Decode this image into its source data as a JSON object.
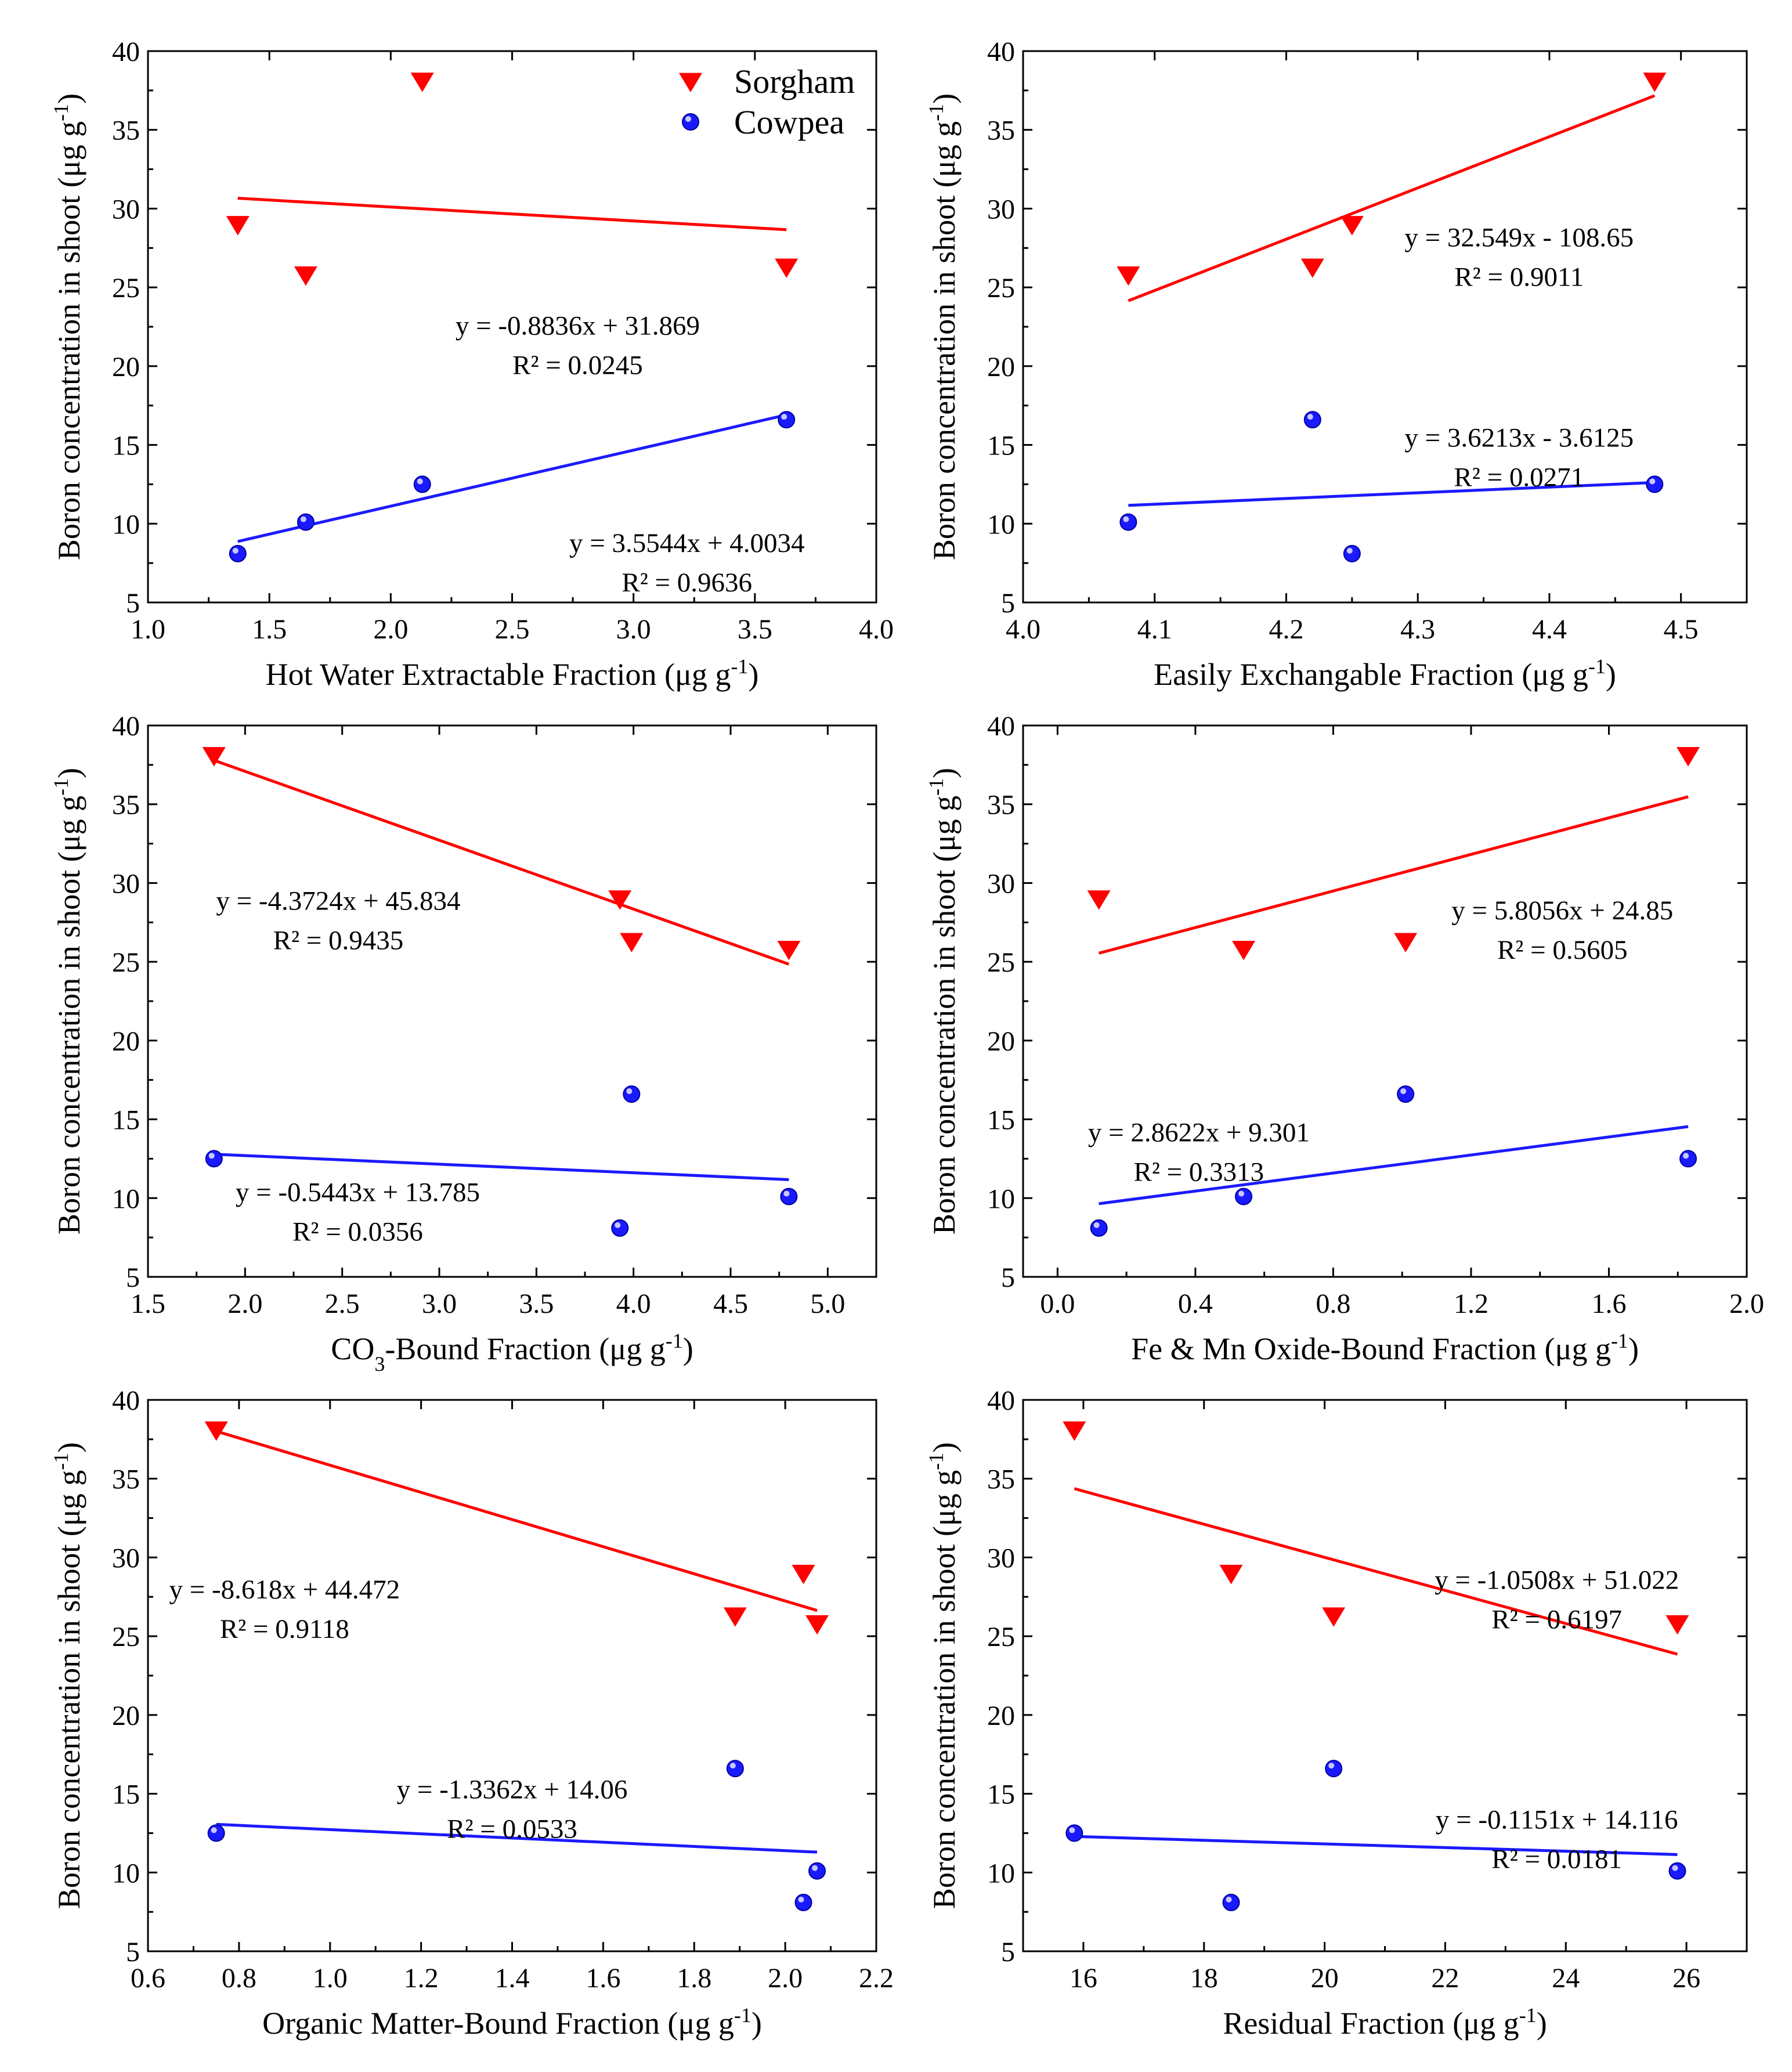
{
  "legend": {
    "sorghum_label": "Sorgham",
    "cowpea_label": "Cowpea"
  },
  "colors": {
    "sorghum": "#ff0000",
    "cowpea": "#1a1aff",
    "cowpea_dark": "#0000a0",
    "axes": "#000000"
  },
  "chart_data": [
    {
      "type": "scatter",
      "panel": "hot-water",
      "xlabel": "Hot Water Extractable Fraction (μg g-1)",
      "xlabel_main": "Hot Water Extractable Fraction (μg g",
      "xlabel_sup": "-1",
      "xlabel_tail": ")",
      "ylabel_main": "Boron concentration in shoot (μg g",
      "ylabel_sup": "-1",
      "ylabel_tail": ")",
      "xlim": [
        1.0,
        4.0
      ],
      "ylim": [
        5,
        40
      ],
      "xticks": [
        1.0,
        1.5,
        2.0,
        2.5,
        3.0,
        3.5,
        4.0
      ],
      "yticks": [
        5,
        10,
        15,
        20,
        25,
        30,
        35,
        40
      ],
      "xdecimals": 1,
      "show_legend": true,
      "series": [
        {
          "name": "Sorgham",
          "x": [
            1.37,
            1.65,
            2.13,
            3.63
          ],
          "y": [
            29.0,
            25.8,
            38.1,
            26.3
          ],
          "fit": {
            "slope": -0.8836,
            "intercept": 31.869,
            "xrange": [
              1.37,
              3.63
            ]
          },
          "equation": "y = -0.8836x + 31.869",
          "r2": "R² = 0.0245",
          "label_anchor": [
            2.77,
            22.0
          ]
        },
        {
          "name": "Cowpea",
          "x": [
            1.37,
            1.65,
            2.13,
            3.63
          ],
          "y": [
            8.1,
            10.1,
            12.5,
            16.6
          ],
          "fit": {
            "slope": 3.5544,
            "intercept": 4.0034,
            "xrange": [
              1.37,
              3.63
            ]
          },
          "equation": "y = 3.5544x + 4.0034",
          "r2": "R² = 0.9636",
          "label_anchor": [
            3.22,
            8.2
          ]
        }
      ]
    },
    {
      "type": "scatter",
      "panel": "easily-exchangeable",
      "xlabel": "Easily Exchangable Fraction (μg g-1)",
      "xlabel_main": "Easily Exchangable Fraction (μg g",
      "xlabel_sup": "-1",
      "xlabel_tail": ")",
      "ylabel_main": "Boron concentration in shoot (μg g",
      "ylabel_sup": "-1",
      "ylabel_tail": ")",
      "xlim": [
        4.0,
        4.55
      ],
      "ylim": [
        5,
        40
      ],
      "xticks": [
        4.0,
        4.1,
        4.2,
        4.3,
        4.4,
        4.5
      ],
      "yticks": [
        5,
        10,
        15,
        20,
        25,
        30,
        35,
        40
      ],
      "xdecimals": 1,
      "show_legend": false,
      "series": [
        {
          "name": "Sorgham",
          "x": [
            4.08,
            4.22,
            4.25,
            4.48
          ],
          "y": [
            25.8,
            26.3,
            29.0,
            38.1
          ],
          "fit": {
            "slope": 32.549,
            "intercept": -108.65,
            "xrange": [
              4.08,
              4.48
            ]
          },
          "equation": "y = 32.549x - 108.65",
          "r2": "R² = 0.9011",
          "label_anchor": [
            4.377,
            27.6
          ]
        },
        {
          "name": "Cowpea",
          "x": [
            4.08,
            4.22,
            4.25,
            4.48
          ],
          "y": [
            10.1,
            16.6,
            8.1,
            12.5
          ],
          "fit": {
            "slope": 3.6213,
            "intercept": -3.6125,
            "xrange": [
              4.08,
              4.48
            ]
          },
          "equation": "y = 3.6213x - 3.6125",
          "r2": "R² = 0.0271",
          "label_anchor": [
            4.377,
            14.9
          ]
        }
      ]
    },
    {
      "type": "scatter",
      "panel": "co3-bound",
      "xlabel": "CO3-Bound Fraction (μg g-1)",
      "xlabel_main": "CO",
      "xlabel_sub": "3",
      "xlabel_rest": "-Bound Fraction (μg g",
      "xlabel_sup": "-1",
      "xlabel_tail": ")",
      "ylabel_main": "Boron concentration in shoot (μg g",
      "ylabel_sup": "-1",
      "ylabel_tail": ")",
      "xlim": [
        1.5,
        5.25
      ],
      "ylim": [
        5,
        40
      ],
      "xticks": [
        1.5,
        2.0,
        2.5,
        3.0,
        3.5,
        4.0,
        4.5,
        5.0
      ],
      "yticks": [
        5,
        10,
        15,
        20,
        25,
        30,
        35,
        40
      ],
      "xdecimals": 1,
      "show_legend": false,
      "series": [
        {
          "name": "Sorgham",
          "x": [
            1.84,
            3.93,
            3.99,
            4.8
          ],
          "y": [
            38.1,
            29.0,
            26.3,
            25.8
          ],
          "fit": {
            "slope": -4.3724,
            "intercept": 45.834,
            "xrange": [
              1.84,
              4.8
            ]
          },
          "equation": "y = -4.3724x + 45.834",
          "r2": "R² = 0.9435",
          "label_anchor": [
            2.48,
            28.3
          ]
        },
        {
          "name": "Cowpea",
          "x": [
            1.84,
            3.93,
            3.99,
            4.8
          ],
          "y": [
            12.5,
            8.1,
            16.6,
            10.1
          ],
          "fit": {
            "slope": -0.5443,
            "intercept": 13.785,
            "xrange": [
              1.84,
              4.8
            ]
          },
          "equation": "y = -0.5443x + 13.785",
          "r2": "R² = 0.0356",
          "label_anchor": [
            2.58,
            9.8
          ]
        }
      ]
    },
    {
      "type": "scatter",
      "panel": "fe-mn-oxide",
      "xlabel": "Fe & Mn Oxide-Bound Fraction (μg g-1)",
      "xlabel_main": "Fe & Mn Oxide-Bound Fraction (μg g",
      "xlabel_sup": "-1",
      "xlabel_tail": ")",
      "ylabel_main": "Boron concentration in shoot (μg g",
      "ylabel_sup": "-1",
      "ylabel_tail": ")",
      "xlim": [
        -0.1,
        2.0
      ],
      "ylim": [
        5,
        40
      ],
      "xticks": [
        0.0,
        0.4,
        0.8,
        1.2,
        1.6,
        2.0
      ],
      "yticks": [
        5,
        10,
        15,
        20,
        25,
        30,
        35,
        40
      ],
      "xdecimals": 1,
      "show_legend": false,
      "series": [
        {
          "name": "Sorgham",
          "x": [
            0.12,
            0.54,
            1.01,
            1.83
          ],
          "y": [
            29.0,
            25.8,
            26.3,
            38.1
          ],
          "fit": {
            "slope": 5.8056,
            "intercept": 24.85,
            "xrange": [
              0.12,
              1.83
            ]
          },
          "equation": "y = 5.8056x + 24.85",
          "r2": "R² = 0.5605",
          "label_anchor": [
            1.465,
            27.7
          ]
        },
        {
          "name": "Cowpea",
          "x": [
            0.12,
            0.54,
            1.01,
            1.83
          ],
          "y": [
            8.1,
            10.1,
            16.6,
            12.5
          ],
          "fit": {
            "slope": 2.8622,
            "intercept": 9.301,
            "xrange": [
              0.12,
              1.83
            ]
          },
          "equation": "y = 2.8622x + 9.301",
          "r2": "R² = 0.3313",
          "label_anchor": [
            0.41,
            13.6
          ]
        }
      ]
    },
    {
      "type": "scatter",
      "panel": "organic-matter",
      "xlabel": "Organic Matter-Bound Fraction (μg g-1)",
      "xlabel_main": "Organic Matter-Bound Fraction (μg g",
      "xlabel_sup": "-1",
      "xlabel_tail": ")",
      "ylabel_main": "Boron concentration in shoot (μg g",
      "ylabel_sup": "-1",
      "ylabel_tail": ")",
      "xlim": [
        0.6,
        2.2
      ],
      "ylim": [
        5,
        40
      ],
      "xticks": [
        0.6,
        0.8,
        1.0,
        1.2,
        1.4,
        1.6,
        1.8,
        2.0,
        2.2
      ],
      "yticks": [
        5,
        10,
        15,
        20,
        25,
        30,
        35,
        40
      ],
      "xdecimals": 1,
      "show_legend": false,
      "series": [
        {
          "name": "Sorgham",
          "x": [
            0.75,
            1.89,
            2.04,
            2.07
          ],
          "y": [
            38.1,
            26.3,
            29.0,
            25.8
          ],
          "fit": {
            "slope": -8.618,
            "intercept": 44.472,
            "xrange": [
              0.75,
              2.07
            ]
          },
          "equation": "y = -8.618x + 44.472",
          "r2": "R² = 0.9118",
          "label_anchor": [
            0.9,
            27.4
          ]
        },
        {
          "name": "Cowpea",
          "x": [
            0.75,
            1.89,
            2.04,
            2.07
          ],
          "y": [
            12.5,
            16.6,
            8.1,
            10.1
          ],
          "fit": {
            "slope": -1.3362,
            "intercept": 14.06,
            "xrange": [
              0.75,
              2.07
            ]
          },
          "equation": "y = -1.3362x + 14.06",
          "r2": "R² = 0.0533",
          "label_anchor": [
            1.4,
            14.7
          ]
        }
      ]
    },
    {
      "type": "scatter",
      "panel": "residual",
      "xlabel": "Residual Fraction (μg g-1)",
      "xlabel_main": "Residual Fraction (μg g",
      "xlabel_sup": "-1",
      "xlabel_tail": ")",
      "ylabel_main": "Boron concentration in shoot (μg g",
      "ylabel_sup": "-1",
      "ylabel_tail": ")",
      "xlim": [
        15.0,
        27.0
      ],
      "ylim": [
        5,
        40
      ],
      "xticks": [
        16,
        18,
        20,
        22,
        24,
        26
      ],
      "yticks": [
        5,
        10,
        15,
        20,
        25,
        30,
        35,
        40
      ],
      "xdecimals": 0,
      "show_legend": false,
      "series": [
        {
          "name": "Sorgham",
          "x": [
            15.85,
            18.45,
            20.15,
            25.85
          ],
          "y": [
            38.1,
            29.0,
            26.3,
            25.8
          ],
          "fit": {
            "slope": -1.0508,
            "intercept": 51.022,
            "xrange": [
              15.85,
              25.85
            ]
          },
          "equation": "y = -1.0508x + 51.022",
          "r2": "R² = 0.6197",
          "label_anchor": [
            23.85,
            28.0
          ]
        },
        {
          "name": "Cowpea",
          "x": [
            15.85,
            18.45,
            20.15,
            25.85
          ],
          "y": [
            12.5,
            8.1,
            16.6,
            10.1
          ],
          "fit": {
            "slope": -0.1151,
            "intercept": 14.116,
            "xrange": [
              15.85,
              25.85
            ]
          },
          "equation": "y = -0.1151x + 14.116",
          "r2": "R² = 0.0181",
          "label_anchor": [
            23.85,
            12.8
          ]
        }
      ]
    }
  ]
}
